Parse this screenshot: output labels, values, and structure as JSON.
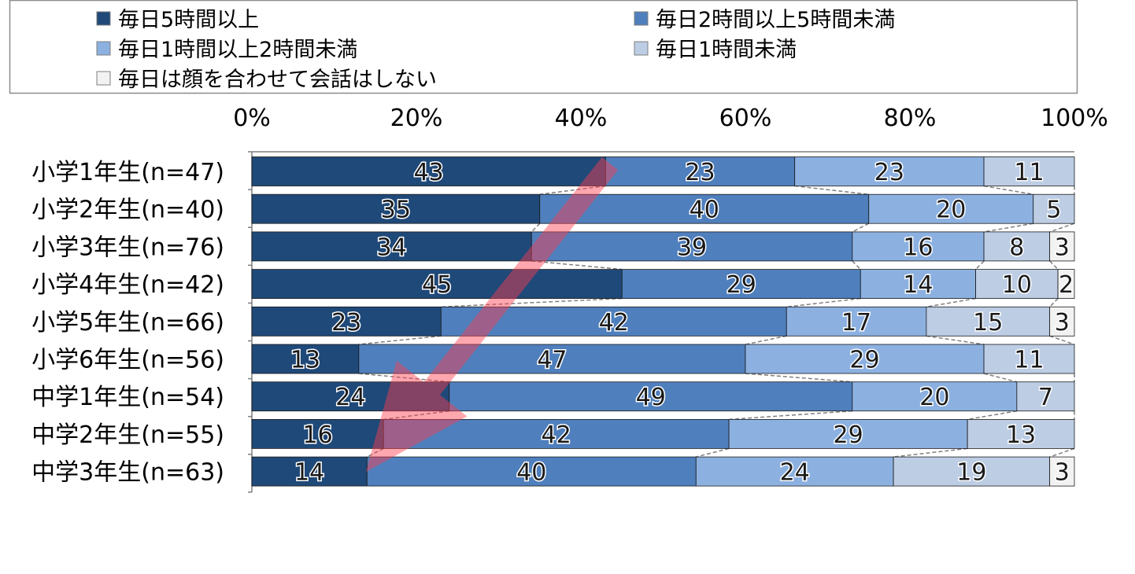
{
  "chart_data": {
    "type": "bar",
    "orientation": "horizontal",
    "stacked": "100%",
    "categories": [
      "小学1年生(n=47)",
      "小学2年生(n=40)",
      "小学3年生(n=76)",
      "小学4年生(n=42)",
      "小学5年生(n=66)",
      "小学6年生(n=56)",
      "中学1年生(n=54)",
      "中学2年生(n=55)",
      "中学3年生(n=63)"
    ],
    "series": [
      {
        "name": "毎日5時間以上",
        "color": "#1f4979",
        "values": [
          43,
          35,
          34,
          45,
          23,
          13,
          24,
          16,
          14
        ]
      },
      {
        "name": "毎日2時間以上5時間未満",
        "color": "#4f7fbc",
        "values": [
          23,
          40,
          39,
          29,
          42,
          47,
          49,
          42,
          40
        ]
      },
      {
        "name": "毎日1時間以上2時間未満",
        "color": "#8cb1e1",
        "values": [
          23,
          20,
          16,
          14,
          17,
          29,
          20,
          29,
          24
        ]
      },
      {
        "name": "毎日1時間未満",
        "color": "#bccde4",
        "values": [
          11,
          5,
          8,
          10,
          15,
          11,
          7,
          13,
          19
        ]
      },
      {
        "name": "毎日は顔を合わせて会話はしない",
        "color": "#f2f2f2",
        "values": [
          0,
          0,
          3,
          2,
          3,
          0,
          0,
          0,
          3
        ]
      }
    ],
    "xticks": [
      "0%",
      "20%",
      "40%",
      "60%",
      "80%",
      "100%"
    ],
    "xlim": [
      0,
      100
    ],
    "legend_position": "top",
    "annotation": "red arrow pointing from upper-right to lower-left"
  }
}
